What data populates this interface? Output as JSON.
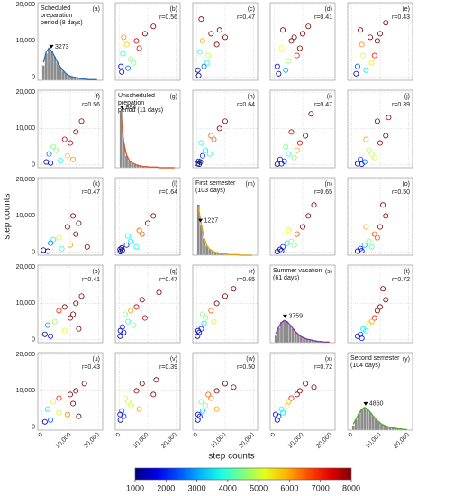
{
  "chart_data": {
    "type": "scatter",
    "x_label": "step counts",
    "y_label": "step counts",
    "xlim": [
      -1500,
      21500
    ],
    "xticks": [
      0,
      {
        "value": 10000,
        "label": "10,000"
      },
      {
        "value": 20000,
        "label": "20,000"
      }
    ],
    "ylim": [
      -800,
      20500
    ],
    "yticks": [
      0,
      {
        "value": 10000,
        "label": "10,000"
      },
      {
        "value": 20000,
        "label": "20,000"
      }
    ],
    "grid": true,
    "clim": [
      1000,
      8000
    ],
    "cticks": [
      1000,
      2000,
      3000,
      4000,
      5000,
      6000,
      7000,
      8000
    ],
    "colormap": "jet",
    "hist_color": "#8c8c8c",
    "hist_ylim": [
      0,
      130
    ],
    "bins": [
      0,
      1000,
      2000,
      3000,
      4000,
      5000,
      6000,
      7000,
      8000,
      9000,
      10000,
      11000,
      12000,
      13000,
      14000,
      15000,
      16000,
      17000,
      18000,
      19000,
      20000
    ],
    "panel_labels": [
      [
        "(a)",
        "(b)",
        "(c)",
        "(d)",
        "(e)"
      ],
      [
        "(f)",
        "(g)",
        "(h)",
        "(i)",
        "(j)"
      ],
      [
        "(k)",
        "(l)",
        "(m)",
        "(n)",
        "(o)"
      ],
      [
        "(p)",
        "(q)",
        "(r)",
        "(s)",
        "(t)"
      ],
      [
        "(u)",
        "(v)",
        "(w)",
        "(x)",
        "(y)"
      ]
    ],
    "variables": [
      {
        "label": "Scheduled\npreparation\nperiod (8 days)",
        "median": 3273,
        "color": "#2e75b6",
        "counts": [
          25,
          45,
          55,
          50,
          40,
          30,
          22,
          15,
          11,
          8,
          6,
          5,
          4,
          3,
          2,
          2,
          1,
          1,
          1,
          0
        ],
        "kde": [
          30,
          48,
          53,
          48,
          39,
          30,
          22,
          16,
          11,
          8,
          6,
          5,
          4,
          3,
          2,
          2,
          1,
          1,
          1,
          1
        ]
      },
      {
        "label": "Unscheduled\nprepation\nperiod (11 days)",
        "median": 884,
        "color": "#e0582a",
        "counts": [
          95,
          40,
          20,
          12,
          8,
          6,
          4,
          3,
          2,
          2,
          1,
          1,
          1,
          0,
          0,
          0,
          0,
          0,
          0,
          0
        ],
        "kde": [
          90,
          42,
          21,
          12,
          8,
          6,
          4,
          3,
          2,
          2,
          1,
          1,
          1,
          1,
          0,
          0,
          0,
          0,
          0,
          0
        ]
      },
      {
        "label": "First semester\n(103 days)",
        "median": 1227,
        "color": "#d9a520",
        "counts": [
          85,
          50,
          28,
          16,
          10,
          7,
          5,
          4,
          3,
          2,
          2,
          1,
          1,
          1,
          0,
          0,
          0,
          0,
          0,
          0
        ],
        "kde": [
          80,
          52,
          29,
          16,
          10,
          7,
          5,
          4,
          3,
          2,
          2,
          1,
          1,
          1,
          1,
          0,
          0,
          0,
          0,
          0
        ]
      },
      {
        "label": "Summer vacation\n(61 days)",
        "median": 3759,
        "color": "#8a3c9e",
        "counts": [
          12,
          25,
          35,
          38,
          36,
          30,
          24,
          18,
          14,
          10,
          8,
          6,
          5,
          4,
          3,
          2,
          2,
          1,
          1,
          1
        ],
        "kde": [
          15,
          26,
          34,
          37,
          35,
          30,
          24,
          18,
          14,
          10,
          8,
          6,
          5,
          4,
          3,
          2,
          2,
          1,
          1,
          1
        ]
      },
      {
        "label": "Second semester\n(104 days)",
        "median": 4860,
        "color": "#5aa832",
        "counts": [
          8,
          18,
          28,
          35,
          38,
          36,
          30,
          24,
          18,
          14,
          10,
          8,
          6,
          5,
          4,
          3,
          2,
          2,
          1,
          1
        ],
        "kde": [
          10,
          19,
          28,
          35,
          38,
          35,
          30,
          24,
          18,
          14,
          10,
          8,
          6,
          5,
          4,
          3,
          2,
          2,
          1,
          1
        ]
      }
    ],
    "pairs": [
      {
        "r_label": "r=0.56",
        "x": [
          500,
          1200,
          2500,
          4000,
          6000,
          9000,
          12000,
          3000,
          800,
          7000,
          1500,
          5000
        ],
        "y": [
          3000,
          6500,
          9000,
          5000,
          10000,
          12000,
          14000,
          2500,
          1500,
          8000,
          11000,
          4000
        ],
        "c": [
          1700,
          3800,
          5700,
          4500,
          7500,
          8000,
          8000,
          2700,
          1200,
          7500,
          6200,
          4500
        ]
      },
      {
        "r_label": "r=0.47",
        "x": [
          300,
          1000,
          2000,
          3500,
          5000,
          7000,
          10000,
          1500,
          600,
          4000,
          8000,
          2500
        ],
        "y": [
          2000,
          7000,
          10000,
          4000,
          12000,
          9000,
          11000,
          16000,
          500,
          6000,
          13000,
          3000
        ],
        "c": [
          1200,
          4000,
          6000,
          3700,
          8000,
          8000,
          8000,
          8000,
          1000,
          5000,
          8000,
          2700
        ]
      },
      {
        "r_label": "r=0.41",
        "x": [
          1000,
          2500,
          4000,
          6000,
          8000,
          10000,
          12000,
          3000,
          5000,
          7000,
          1500,
          9000
        ],
        "y": [
          3000,
          8000,
          2000,
          10000,
          6000,
          12000,
          14000,
          13000,
          4500,
          11000,
          1000,
          8000
        ],
        "c": [
          2000,
          5200,
          3000,
          8000,
          7000,
          8000,
          8000,
          8000,
          4700,
          8000,
          1200,
          8000
        ]
      },
      {
        "r_label": "r=0.43",
        "x": [
          2000,
          3500,
          5000,
          6500,
          8000,
          10000,
          12000,
          4000,
          1500,
          7000,
          9000,
          3000
        ],
        "y": [
          3000,
          9000,
          2000,
          11000,
          6000,
          12000,
          15000,
          6000,
          1000,
          4000,
          10000,
          13000
        ],
        "c": [
          2500,
          6200,
          3500,
          8000,
          7000,
          8000,
          8000,
          5000,
          1200,
          5500,
          8000,
          8000
        ]
      },
      {
        "r_label": "r=0.64",
        "x": [
          200,
          600,
          1200,
          2000,
          3000,
          4500,
          6000,
          8000,
          10000,
          1500,
          800,
          5000
        ],
        "y": [
          300,
          1000,
          800,
          2500,
          4000,
          3000,
          7000,
          10000,
          12000,
          6000,
          200,
          8000
        ],
        "c": [
          1000,
          1000,
          1000,
          2200,
          3500,
          3700,
          6500,
          8000,
          8000,
          3700,
          1000,
          6500
        ]
      },
      {
        "r_label": "r=0.47",
        "x": [
          1000,
          2000,
          3500,
          5000,
          7000,
          9000,
          11000,
          4000,
          2500,
          6000,
          8000,
          13000
        ],
        "y": [
          200,
          1500,
          1000,
          3000,
          2000,
          6000,
          8000,
          5000,
          300,
          9000,
          4000,
          14000
        ],
        "c": [
          1000,
          1700,
          2200,
          4000,
          4500,
          7500,
          8000,
          4500,
          1400,
          7500,
          6000,
          8000
        ]
      },
      {
        "r_label": "r=0.39",
        "x": [
          2000,
          3000,
          4500,
          6000,
          8000,
          10000,
          12000,
          3500,
          5000,
          7000,
          9000,
          13000
        ],
        "y": [
          300,
          1500,
          800,
          4000,
          2000,
          6000,
          8000,
          200,
          7000,
          3000,
          12000,
          13000
        ],
        "c": [
          1100,
          2200,
          2600,
          5000,
          5000,
          8000,
          8000,
          1800,
          6000,
          5000,
          8000,
          8000
        ]
      },
      {
        "r_label": "r=0.65",
        "x": [
          1000,
          2000,
          3000,
          4500,
          6000,
          8000,
          10000,
          12000,
          2500,
          5000,
          7000,
          14000
        ],
        "y": [
          200,
          800,
          1500,
          2500,
          3000,
          5000,
          7000,
          10000,
          400,
          6000,
          2000,
          13000
        ],
        "c": [
          1000,
          1400,
          2200,
          3500,
          4500,
          6500,
          8000,
          8000,
          1400,
          5500,
          4500,
          8000
        ]
      },
      {
        "r_label": "r=0.50",
        "x": [
          2000,
          3000,
          4500,
          6000,
          8000,
          10000,
          12000,
          3500,
          5000,
          7000,
          9000,
          11000
        ],
        "y": [
          300,
          1000,
          2000,
          3000,
          5000,
          7000,
          10000,
          400,
          7000,
          1500,
          4000,
          13000
        ],
        "c": [
          1100,
          2000,
          3200,
          4500,
          6500,
          8000,
          8000,
          1900,
          6000,
          4200,
          6500,
          8000
        ]
      },
      {
        "r_label": "r=0.72",
        "x": [
          2000,
          3000,
          4000,
          5000,
          6000,
          8000,
          10000,
          12000,
          3500,
          7000,
          9000,
          11000
        ],
        "y": [
          1000,
          1500,
          3000,
          2500,
          4500,
          6000,
          9000,
          11000,
          400,
          5000,
          8000,
          14000
        ],
        "c": [
          1500,
          2200,
          3500,
          3700,
          5200,
          7000,
          8000,
          8000,
          1900,
          6000,
          8000,
          8000
        ]
      }
    ]
  }
}
